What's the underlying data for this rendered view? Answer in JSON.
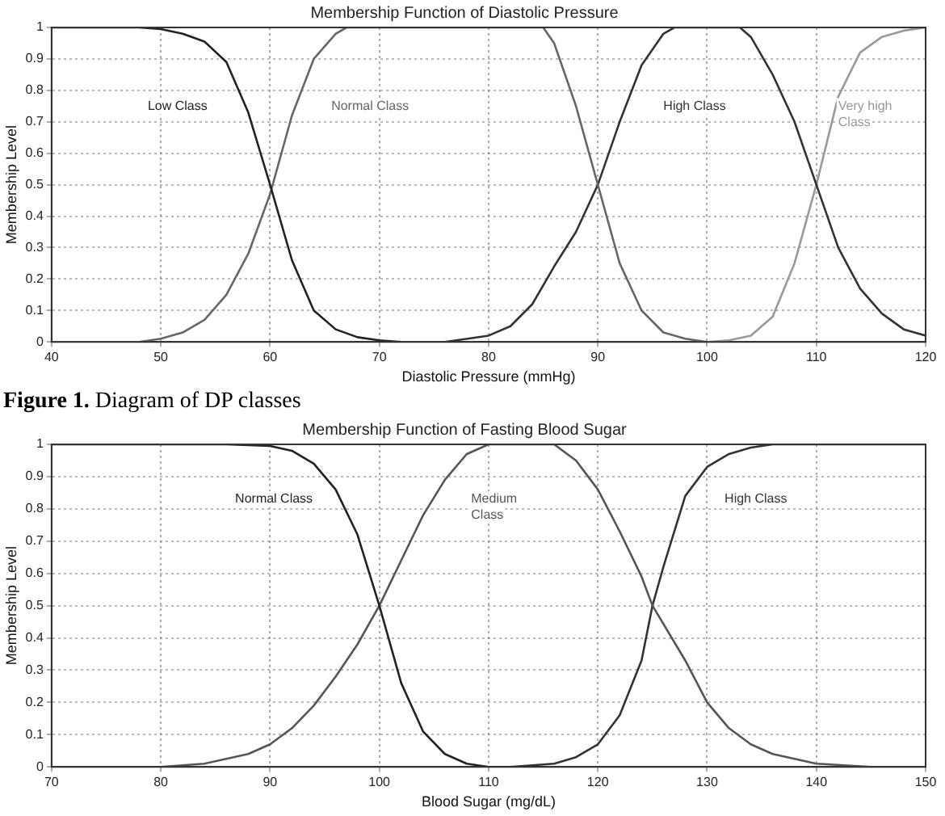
{
  "chart_data": [
    {
      "type": "line",
      "title": "Membership Function of Diastolic Pressure",
      "xlabel": "Diastolic Pressure (mmHg)",
      "ylabel": "Membership Level",
      "xlim": [
        40,
        120
      ],
      "xticks": [
        40,
        50,
        60,
        70,
        80,
        90,
        100,
        110,
        120
      ],
      "ylim": [
        0,
        1
      ],
      "yticks": [
        0,
        0.1,
        0.2,
        0.3,
        0.4,
        0.5,
        0.6,
        0.7,
        0.8,
        0.9,
        1
      ],
      "grid": true,
      "legend": false,
      "marker": "none",
      "line_style": "solid",
      "annotations": [
        "Figure 1. Diagram of DP classes"
      ],
      "series": [
        {
          "name": "Low Class",
          "color": "#222222",
          "x": [
            40,
            48,
            50,
            52,
            54,
            56,
            58,
            60,
            62,
            64,
            66,
            68,
            70,
            72
          ],
          "values": [
            1,
            1,
            0.995,
            0.98,
            0.955,
            0.89,
            0.73,
            0.5,
            0.26,
            0.1,
            0.04,
            0.015,
            0.005,
            0
          ]
        },
        {
          "name": "Normal Class",
          "color": "#666666",
          "x": [
            40,
            48,
            50,
            52,
            54,
            56,
            58,
            60,
            62,
            64,
            66,
            67,
            85,
            86,
            88,
            90,
            92,
            94,
            96,
            98,
            100
          ],
          "values": [
            0,
            0,
            0.01,
            0.03,
            0.07,
            0.15,
            0.28,
            0.47,
            0.72,
            0.9,
            0.98,
            1,
            1,
            0.95,
            0.75,
            0.5,
            0.25,
            0.1,
            0.03,
            0.01,
            0
          ]
        },
        {
          "name": "High Class",
          "color": "#333333",
          "x": [
            76,
            80,
            82,
            84,
            86,
            88,
            90,
            92,
            94,
            96,
            97,
            103,
            104,
            106,
            108,
            110,
            112,
            114,
            116,
            118,
            120
          ],
          "values": [
            0,
            0.02,
            0.05,
            0.12,
            0.24,
            0.35,
            0.5,
            0.7,
            0.88,
            0.98,
            1,
            1,
            0.97,
            0.85,
            0.7,
            0.5,
            0.3,
            0.17,
            0.09,
            0.04,
            0.02
          ]
        },
        {
          "name": "Very high Class",
          "color": "#999999",
          "x": [
            100,
            102,
            104,
            106,
            108,
            110,
            112,
            114,
            116,
            118,
            120
          ],
          "values": [
            0,
            0.005,
            0.02,
            0.08,
            0.25,
            0.5,
            0.78,
            0.92,
            0.97,
            0.99,
            1
          ]
        }
      ]
    },
    {
      "type": "line",
      "title": "Membership Function of Fasting Blood Sugar",
      "xlabel": "Blood Sugar (mg/dL)",
      "ylabel": "Membership Level",
      "xlim": [
        70,
        150
      ],
      "xticks": [
        70,
        80,
        90,
        100,
        110,
        120,
        130,
        140,
        150
      ],
      "ylim": [
        0,
        1
      ],
      "yticks": [
        0,
        0.1,
        0.2,
        0.3,
        0.4,
        0.5,
        0.6,
        0.7,
        0.8,
        0.9,
        1
      ],
      "grid": true,
      "legend": false,
      "marker": "none",
      "line_style": "solid",
      "series": [
        {
          "name": "Normal Class",
          "color": "#222222",
          "x": [
            70,
            86,
            90,
            92,
            94,
            96,
            98,
            100,
            102,
            104,
            106,
            108,
            110,
            115
          ],
          "values": [
            1,
            1,
            0.995,
            0.98,
            0.94,
            0.86,
            0.72,
            0.5,
            0.26,
            0.11,
            0.04,
            0.01,
            0,
            0
          ]
        },
        {
          "name": "Medium Class",
          "color": "#555555",
          "x": [
            80,
            84,
            88,
            90,
            92,
            94,
            96,
            98,
            100,
            102,
            104,
            106,
            108,
            110,
            116,
            118,
            120,
            122,
            124,
            125,
            128,
            130,
            132,
            134,
            136,
            140,
            145
          ],
          "values": [
            0,
            0.01,
            0.04,
            0.07,
            0.12,
            0.19,
            0.28,
            0.38,
            0.5,
            0.64,
            0.78,
            0.89,
            0.97,
            1,
            1,
            0.95,
            0.86,
            0.73,
            0.59,
            0.5,
            0.33,
            0.2,
            0.12,
            0.07,
            0.04,
            0.01,
            0
          ]
        },
        {
          "name": "High Class",
          "color": "#333333",
          "x": [
            105,
            112,
            114,
            116,
            118,
            120,
            122,
            124,
            125,
            126,
            128,
            130,
            132,
            134,
            136,
            150
          ],
          "values": [
            0,
            0,
            0.005,
            0.01,
            0.03,
            0.07,
            0.16,
            0.33,
            0.5,
            0.62,
            0.84,
            0.93,
            0.97,
            0.99,
            1,
            1
          ]
        }
      ]
    }
  ]
}
